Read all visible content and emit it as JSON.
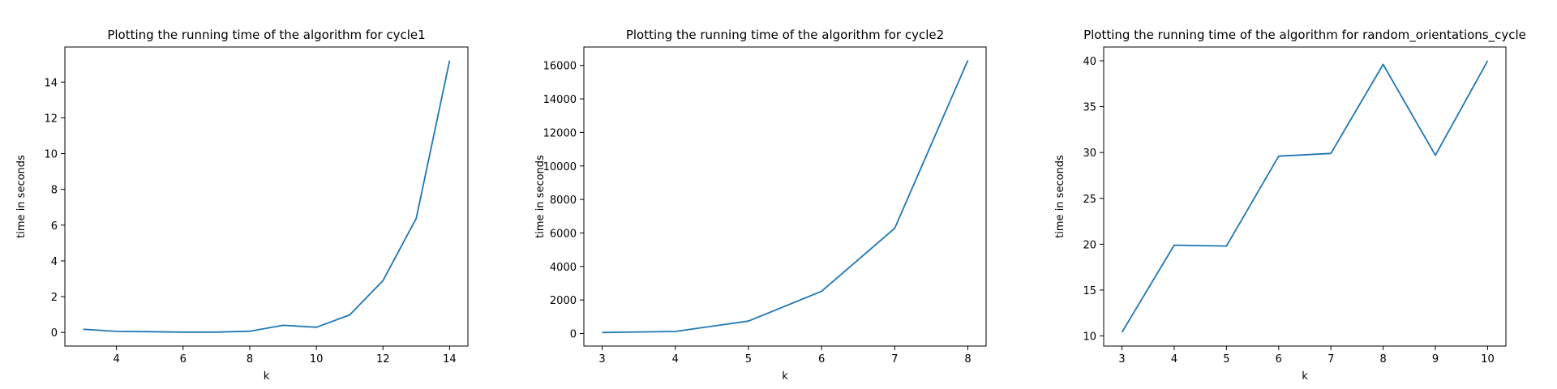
{
  "chart_data": [
    {
      "type": "line",
      "title": "Plotting the running time of the algorithm for cycle1",
      "xlabel": "k",
      "ylabel": "time in seconds",
      "x": [
        3,
        4,
        5,
        6,
        7,
        8,
        9,
        10,
        11,
        12,
        13,
        14
      ],
      "series": [
        {
          "values": [
            0.18,
            0.06,
            0.04,
            0.02,
            0.02,
            0.07,
            0.4,
            0.29,
            0.98,
            2.9,
            6.38,
            15.2
          ]
        }
      ],
      "xlim": [
        2.45,
        14.55
      ],
      "ylim": [
        -0.76,
        15.96
      ],
      "xticks": [
        4,
        6,
        8,
        10,
        12,
        14
      ],
      "yticks": [
        0,
        2,
        4,
        6,
        8,
        10,
        12,
        14
      ],
      "grid": false,
      "line_color": "#1f77b4"
    },
    {
      "type": "line",
      "title": "Plotting the running time of the algorithm for cycle2",
      "xlabel": "k",
      "ylabel": "time in seconds",
      "x": [
        3,
        4,
        5,
        6,
        7,
        8
      ],
      "series": [
        {
          "values": [
            60,
            120,
            740,
            2520,
            6280,
            16300
          ]
        }
      ],
      "xlim": [
        2.75,
        8.25
      ],
      "ylim": [
        -750,
        17100
      ],
      "xticks": [
        3,
        4,
        5,
        6,
        7,
        8
      ],
      "yticks": [
        0,
        2000,
        4000,
        6000,
        8000,
        10000,
        12000,
        14000,
        16000
      ],
      "grid": false,
      "line_color": "#1f77b4"
    },
    {
      "type": "line",
      "title": "Plotting the running time of the algorithm for random_orientations_cycle",
      "xlabel": "k",
      "ylabel": "time in seconds",
      "x": [
        3,
        4,
        5,
        6,
        7,
        8,
        9,
        10
      ],
      "series": [
        {
          "values": [
            10.4,
            19.9,
            19.8,
            29.6,
            29.9,
            39.6,
            29.7,
            40.0
          ]
        }
      ],
      "xlim": [
        2.65,
        10.35
      ],
      "ylim": [
        8.9,
        41.5
      ],
      "xticks": [
        3,
        4,
        5,
        6,
        7,
        8,
        9,
        10
      ],
      "yticks": [
        10,
        15,
        20,
        25,
        30,
        35,
        40
      ],
      "grid": false,
      "line_color": "#1f77b4"
    }
  ]
}
